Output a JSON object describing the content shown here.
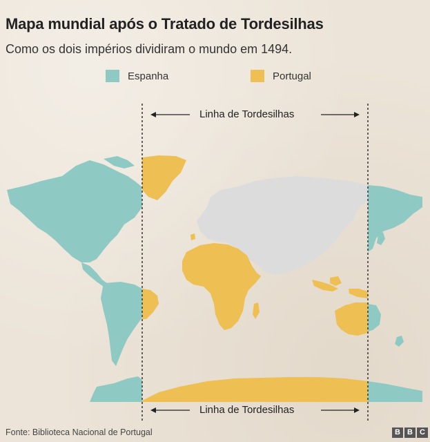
{
  "title": "Mapa mundial após o Tratado de Tordesilhas",
  "subtitle": "Como os dois impérios dividiram o mundo em 1494.",
  "legend": [
    {
      "label": "Espanha",
      "color": "#8ec9c4"
    },
    {
      "label": "Portugal",
      "color": "#eebf52"
    }
  ],
  "line_label_top": "Linha de Tordesilhas",
  "line_label_bottom": "Linha de Tordesilhas",
  "footer": "Fonte: Biblioteca Nacional de Portugal",
  "logo": [
    "B",
    "B",
    "C"
  ],
  "colors": {
    "spain": "#8ec9c4",
    "portugal": "#eebf52",
    "neutral": "#dcdcdc",
    "line": "#333333"
  }
}
